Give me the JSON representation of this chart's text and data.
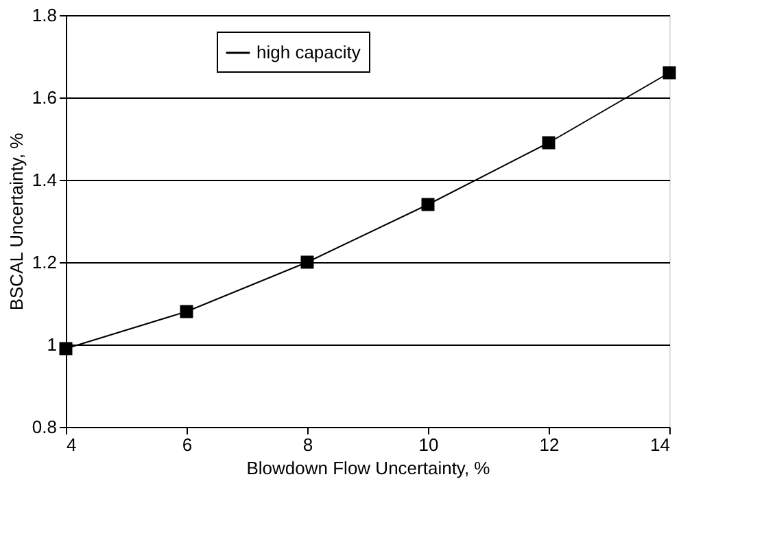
{
  "chart_data": {
    "type": "line",
    "xlabel": "Blowdown Flow Uncertainty, %",
    "ylabel": "BSCAL Uncertainty, %",
    "x": [
      4,
      6,
      8,
      10,
      12,
      14
    ],
    "series": [
      {
        "name": "high capacity",
        "color": "#000000",
        "values": [
          0.99,
          1.08,
          1.2,
          1.34,
          1.49,
          1.66
        ]
      }
    ],
    "xlim": [
      4,
      14
    ],
    "xticks": [
      4,
      6,
      8,
      10,
      12,
      14
    ],
    "ylim": [
      0.8,
      1.8
    ],
    "yticks": [
      0.8,
      1.0,
      1.2,
      1.4,
      1.6,
      1.8
    ],
    "grid": "y",
    "legend": "top",
    "marker": "square",
    "line_style": "solid"
  }
}
